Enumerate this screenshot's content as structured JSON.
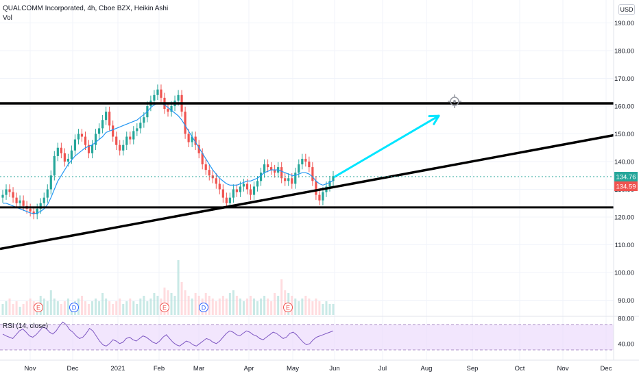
{
  "header": {
    "title": "QUALCOMM Incorporated, 4h, Cboe BZX, Heikin Ashi",
    "volume_label": "Vol",
    "currency_button": "USD"
  },
  "rsi": {
    "label": "RSI (14, close)",
    "upper_band": 70,
    "lower_band": 30,
    "ticks": [
      "80.00",
      "40.00"
    ],
    "values": [
      55,
      52,
      50,
      48,
      54,
      60,
      63,
      58,
      52,
      50,
      54,
      60,
      66,
      64,
      58,
      55,
      60,
      68,
      74,
      70,
      62,
      58,
      52,
      48,
      50,
      56,
      64,
      60,
      52,
      44,
      38,
      36,
      40,
      46,
      44,
      40,
      42,
      48,
      50,
      46,
      44,
      48,
      52,
      50,
      46,
      42,
      40,
      44,
      50,
      54,
      48,
      42,
      38,
      36,
      40,
      44,
      42,
      38,
      36,
      40,
      44,
      48,
      46,
      42,
      40,
      44,
      50,
      56,
      60,
      58,
      54,
      52,
      56,
      60,
      58,
      54,
      52,
      48,
      46,
      50,
      54,
      58,
      56,
      52,
      48,
      50,
      56,
      58,
      54,
      48,
      42,
      38,
      40,
      46,
      50,
      52,
      54,
      56,
      58,
      60
    ]
  },
  "price_axis": {
    "ticks": [
      "190.00",
      "180.00",
      "170.00",
      "160.00",
      "150.00",
      "140.00",
      "130.00",
      "120.00",
      "110.00",
      "100.00",
      "90.00"
    ],
    "last_price_tag": "134.76",
    "prev_close_tag": "134.59",
    "colors": {
      "last": "#26a69a",
      "prev": "#ef5350"
    }
  },
  "time_axis": {
    "labels": [
      "Nov",
      "Dec",
      "2021",
      "Feb",
      "Mar",
      "Apr",
      "May",
      "Jun",
      "Jul",
      "Aug",
      "Sep",
      "Oct",
      "Nov",
      "Dec"
    ]
  },
  "events": [
    {
      "label": "E",
      "color": "#ef5350"
    },
    {
      "label": "D",
      "color": "#2962ff"
    },
    {
      "label": "E",
      "color": "#ef5350"
    },
    {
      "label": "D",
      "color": "#2962ff"
    },
    {
      "label": "E",
      "color": "#ef5350"
    }
  ],
  "drawings": {
    "resistance_line": {
      "price": 161
    },
    "support_line": {
      "price": 123.5
    },
    "trend_line": {
      "start": [
        "Oct",
        108.5
      ],
      "end": [
        "Dec",
        149.5
      ]
    },
    "projection_arrow": {
      "color": "#00e5ff",
      "from": [
        "Jun",
        134.5
      ],
      "to": [
        "Aug",
        156.5
      ]
    }
  },
  "chart_data": {
    "type": "candlestick",
    "title": "QUALCOMM Incorporated, 4h, Cboe BZX, Heikin Ashi",
    "ylim": [
      85,
      195
    ],
    "x_labels": [
      "Nov",
      "Dec",
      "2021",
      "Feb",
      "Mar",
      "Apr",
      "May",
      "Jun",
      "Jul",
      "Aug",
      "Sep",
      "Oct",
      "Nov",
      "Dec"
    ],
    "colors": {
      "up": "#26a69a",
      "down": "#ef5350",
      "ma": "#2196f3"
    },
    "close": [
      128,
      130,
      129,
      127,
      125,
      126,
      124,
      123,
      122,
      121,
      123,
      125,
      127,
      130,
      135,
      142,
      145,
      143,
      140,
      141,
      144,
      148,
      150,
      149,
      146,
      143,
      146,
      150,
      152,
      155,
      158,
      153,
      149,
      146,
      144,
      146,
      149,
      148,
      151,
      152,
      154,
      156,
      160,
      162,
      164,
      166,
      163,
      159,
      158,
      160,
      162,
      164,
      158,
      150,
      147,
      149,
      146,
      143,
      139,
      137,
      135,
      134,
      132,
      130,
      127,
      125,
      127,
      130,
      129,
      131,
      132,
      130,
      128,
      131,
      133,
      136,
      139,
      138,
      137,
      136,
      138,
      134,
      133,
      134,
      132,
      136,
      139,
      141,
      140,
      138,
      133,
      128,
      126,
      129,
      131,
      133,
      134.76
    ],
    "ma": [
      125,
      125,
      124.5,
      124,
      123.5,
      123,
      122.5,
      122,
      121.5,
      121.2,
      121.5,
      122,
      123,
      124.5,
      127,
      130,
      133,
      135,
      137,
      139,
      140.5,
      142,
      143,
      144,
      145,
      145.5,
      146,
      147,
      148,
      149,
      150.5,
      151,
      151.5,
      152,
      152.5,
      153,
      153.5,
      154,
      154.5,
      155,
      156,
      157,
      158,
      159.5,
      160.5,
      161,
      161,
      160.5,
      159.5,
      158.5,
      157.5,
      156.5,
      155,
      153,
      151,
      149,
      147,
      145,
      143,
      141,
      139,
      137,
      135.5,
      134,
      133,
      132,
      131.5,
      131.5,
      131.5,
      132,
      132.5,
      133,
      133,
      133.5,
      134,
      135,
      136,
      136.5,
      137,
      137,
      137,
      136.5,
      136,
      135.5,
      135,
      135,
      135.5,
      136,
      136,
      135.5,
      134.5,
      133,
      132,
      131.5,
      132,
      132.5,
      133.2
    ],
    "volume": [
      0.4,
      0.5,
      0.6,
      0.4,
      0.5,
      0.3,
      0.4,
      0.5,
      0.6,
      0.5,
      0.4,
      0.7,
      0.6,
      0.5,
      0.9,
      0.6,
      0.5,
      0.4,
      0.5,
      0.6,
      0.4,
      0.5,
      0.6,
      0.7,
      0.5,
      0.4,
      0.5,
      0.6,
      0.5,
      0.8,
      0.6,
      0.5,
      0.4,
      0.5,
      0.6,
      0.4,
      0.5,
      0.6,
      0.5,
      0.4,
      0.6,
      0.7,
      0.5,
      0.6,
      0.8,
      0.7,
      0.6,
      1.0,
      0.9,
      0.8,
      0.7,
      2.0,
      1.2,
      0.9,
      0.7,
      0.6,
      0.8,
      0.7,
      0.6,
      0.8,
      0.7,
      0.6,
      0.5,
      0.6,
      0.7,
      0.6,
      0.8,
      0.9,
      0.7,
      0.6,
      0.5,
      0.6,
      0.7,
      0.6,
      0.5,
      0.6,
      0.7,
      0.6,
      0.5,
      0.8,
      0.7,
      1.3,
      0.9,
      0.8,
      0.7,
      0.6,
      0.5,
      0.6,
      0.7,
      0.6,
      0.5,
      0.6,
      0.5,
      0.4,
      0.5,
      0.4,
      0.4
    ]
  }
}
